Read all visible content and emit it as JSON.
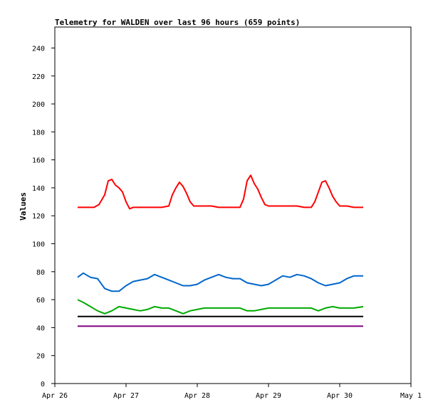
{
  "chart_data": {
    "type": "line",
    "title": "Telemetry for WALDEN over last 96 hours (659 points)",
    "xlabel": "",
    "ylabel": "Values",
    "ylim": [
      0,
      255
    ],
    "yticks": [
      0,
      20,
      40,
      60,
      80,
      100,
      120,
      140,
      160,
      180,
      200,
      220,
      240
    ],
    "xlim": [
      0,
      5
    ],
    "xticks": [
      {
        "label": "Apr 26",
        "value": 0
      },
      {
        "label": "Apr 27",
        "value": 1
      },
      {
        "label": "Apr 28",
        "value": 2
      },
      {
        "label": "Apr 29",
        "value": 3
      },
      {
        "label": "Apr 30",
        "value": 4
      },
      {
        "label": "May 1",
        "value": 5
      }
    ],
    "x_units": "days since Apr 26 00:00",
    "grid": false,
    "legend": "none",
    "series": [
      {
        "color": "#ff0000",
        "x": [
          0.32,
          0.45,
          0.55,
          0.62,
          0.7,
          0.75,
          0.8,
          0.85,
          0.9,
          0.95,
          1.0,
          1.05,
          1.1,
          1.2,
          1.3,
          1.4,
          1.5,
          1.6,
          1.65,
          1.7,
          1.75,
          1.8,
          1.85,
          1.9,
          1.95,
          2.0,
          2.1,
          2.2,
          2.3,
          2.4,
          2.5,
          2.6,
          2.65,
          2.7,
          2.75,
          2.8,
          2.85,
          2.9,
          2.95,
          3.0,
          3.1,
          3.2,
          3.3,
          3.4,
          3.5,
          3.6,
          3.65,
          3.7,
          3.75,
          3.8,
          3.85,
          3.9,
          3.95,
          4.0,
          4.1,
          4.2,
          4.33
        ],
        "values": [
          126,
          126,
          126,
          128,
          135,
          145,
          146,
          142,
          140,
          137,
          130,
          125,
          126,
          126,
          126,
          126,
          126,
          127,
          135,
          140,
          144,
          141,
          136,
          130,
          127,
          127,
          127,
          127,
          126,
          126,
          126,
          126,
          132,
          145,
          149,
          143,
          139,
          133,
          128,
          127,
          127,
          127,
          127,
          127,
          126,
          126,
          130,
          137,
          144,
          145,
          140,
          134,
          130,
          127,
          127,
          126,
          126
        ]
      },
      {
        "color": "#0066cc",
        "x": [
          0.32,
          0.4,
          0.5,
          0.6,
          0.7,
          0.8,
          0.9,
          1.0,
          1.1,
          1.2,
          1.3,
          1.4,
          1.5,
          1.6,
          1.7,
          1.8,
          1.9,
          2.0,
          2.1,
          2.2,
          2.3,
          2.4,
          2.5,
          2.6,
          2.7,
          2.8,
          2.9,
          3.0,
          3.1,
          3.2,
          3.3,
          3.4,
          3.5,
          3.6,
          3.7,
          3.8,
          3.9,
          4.0,
          4.1,
          4.2,
          4.33
        ],
        "values": [
          76,
          79,
          76,
          75,
          68,
          66,
          66,
          70,
          73,
          74,
          75,
          78,
          76,
          74,
          72,
          70,
          70,
          71,
          74,
          76,
          78,
          76,
          75,
          75,
          72,
          71,
          70,
          71,
          74,
          77,
          76,
          78,
          77,
          75,
          72,
          70,
          71,
          72,
          75,
          77,
          77
        ]
      },
      {
        "color": "#00aa00",
        "x": [
          0.32,
          0.4,
          0.5,
          0.6,
          0.7,
          0.8,
          0.9,
          1.0,
          1.1,
          1.2,
          1.3,
          1.4,
          1.5,
          1.6,
          1.7,
          1.8,
          1.9,
          2.0,
          2.1,
          2.2,
          2.3,
          2.4,
          2.5,
          2.6,
          2.7,
          2.8,
          2.9,
          3.0,
          3.1,
          3.2,
          3.3,
          3.4,
          3.5,
          3.6,
          3.7,
          3.8,
          3.9,
          4.0,
          4.1,
          4.2,
          4.33
        ],
        "values": [
          60,
          58,
          55,
          52,
          50,
          52,
          55,
          54,
          53,
          52,
          53,
          55,
          54,
          54,
          52,
          50,
          52,
          53,
          54,
          54,
          54,
          54,
          54,
          54,
          52,
          52,
          53,
          54,
          54,
          54,
          54,
          54,
          54,
          54,
          52,
          54,
          55,
          54,
          54,
          54,
          55
        ]
      },
      {
        "color": "#000000",
        "x": [
          0.32,
          0.6,
          1.0,
          1.5,
          2.0,
          2.5,
          3.0,
          3.5,
          4.0,
          4.33
        ],
        "values": [
          48,
          48,
          48,
          48,
          48,
          48,
          48,
          48,
          48,
          48
        ]
      },
      {
        "color": "#800080",
        "x": [
          0.32,
          0.6,
          1.0,
          1.5,
          2.0,
          2.5,
          3.0,
          3.5,
          4.0,
          4.33
        ],
        "values": [
          41,
          41,
          41,
          41,
          41,
          41,
          41,
          41,
          41,
          41
        ]
      }
    ]
  }
}
